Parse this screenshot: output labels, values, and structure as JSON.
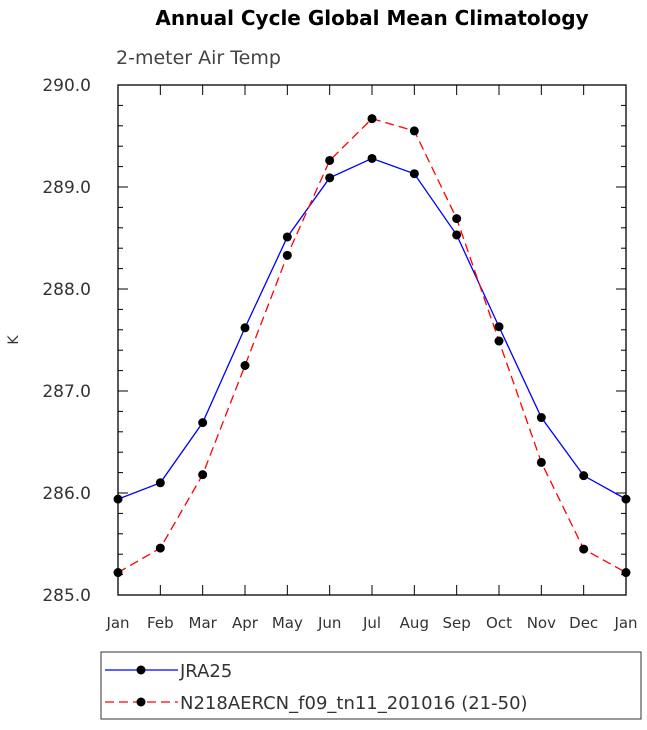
{
  "chart_data": {
    "type": "line",
    "title": "Annual Cycle Global Mean Climatology",
    "subtitle": "2-meter Air Temp",
    "xlabel": "",
    "ylabel": "K",
    "ylim": [
      285.0,
      290.0
    ],
    "yticks": [
      "285.0",
      "286.0",
      "287.0",
      "288.0",
      "289.0",
      "290.0"
    ],
    "categories": [
      "Jan",
      "Feb",
      "Mar",
      "Apr",
      "May",
      "Jun",
      "Jul",
      "Aug",
      "Sep",
      "Oct",
      "Nov",
      "Dec",
      "Jan"
    ],
    "grid": false,
    "legend_position": "bottom",
    "series": [
      {
        "name": "JRA25",
        "color": "#0000ff",
        "dash": "solid",
        "values": [
          285.94,
          286.1,
          286.69,
          287.62,
          288.51,
          289.09,
          289.28,
          289.13,
          288.53,
          287.63,
          286.74,
          286.17,
          285.94
        ]
      },
      {
        "name": "N218AERCN_f09_tn11_201016 (21-50)",
        "color": "#ff0000",
        "dash": "dashed",
        "values": [
          285.22,
          285.46,
          286.18,
          287.25,
          288.33,
          289.26,
          289.67,
          289.55,
          288.69,
          287.49,
          286.3,
          285.45,
          285.22
        ]
      }
    ]
  }
}
